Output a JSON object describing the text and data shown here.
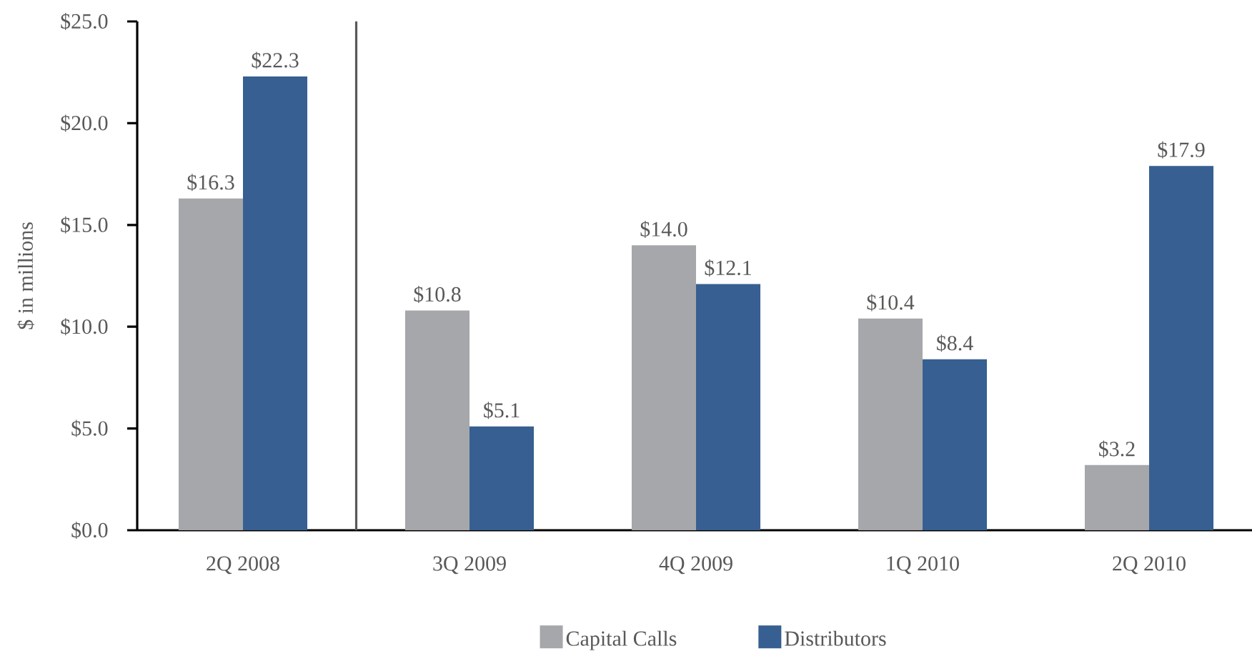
{
  "chart_data": {
    "type": "bar",
    "ylabel": "$ in millions",
    "categories": [
      "2Q 2008",
      "3Q 2009",
      "4Q 2009",
      "1Q 2010",
      "2Q 2010"
    ],
    "series": [
      {
        "name": "Capital Calls",
        "color": "#a6a7aa",
        "values": [
          16.3,
          10.8,
          14.0,
          10.4,
          3.2
        ],
        "value_labels": [
          "$16.3",
          "$10.8",
          "$14.0",
          "$10.4",
          "$3.2"
        ]
      },
      {
        "name": "Distributors",
        "color": "#375f91",
        "values": [
          22.3,
          5.1,
          12.1,
          8.4,
          17.9
        ],
        "value_labels": [
          "$22.3",
          "$5.1",
          "$12.1",
          "$8.4",
          "$17.9"
        ]
      }
    ],
    "ylim": [
      0,
      25
    ],
    "yticks": [
      {
        "value": 0,
        "label": "$0.0"
      },
      {
        "value": 5,
        "label": "$5.0"
      },
      {
        "value": 10,
        "label": "$10.0"
      },
      {
        "value": 15,
        "label": "$15.0"
      },
      {
        "value": 20,
        "label": "$20.0"
      },
      {
        "value": 25,
        "label": "$25.0"
      }
    ],
    "legend": "bottom"
  }
}
